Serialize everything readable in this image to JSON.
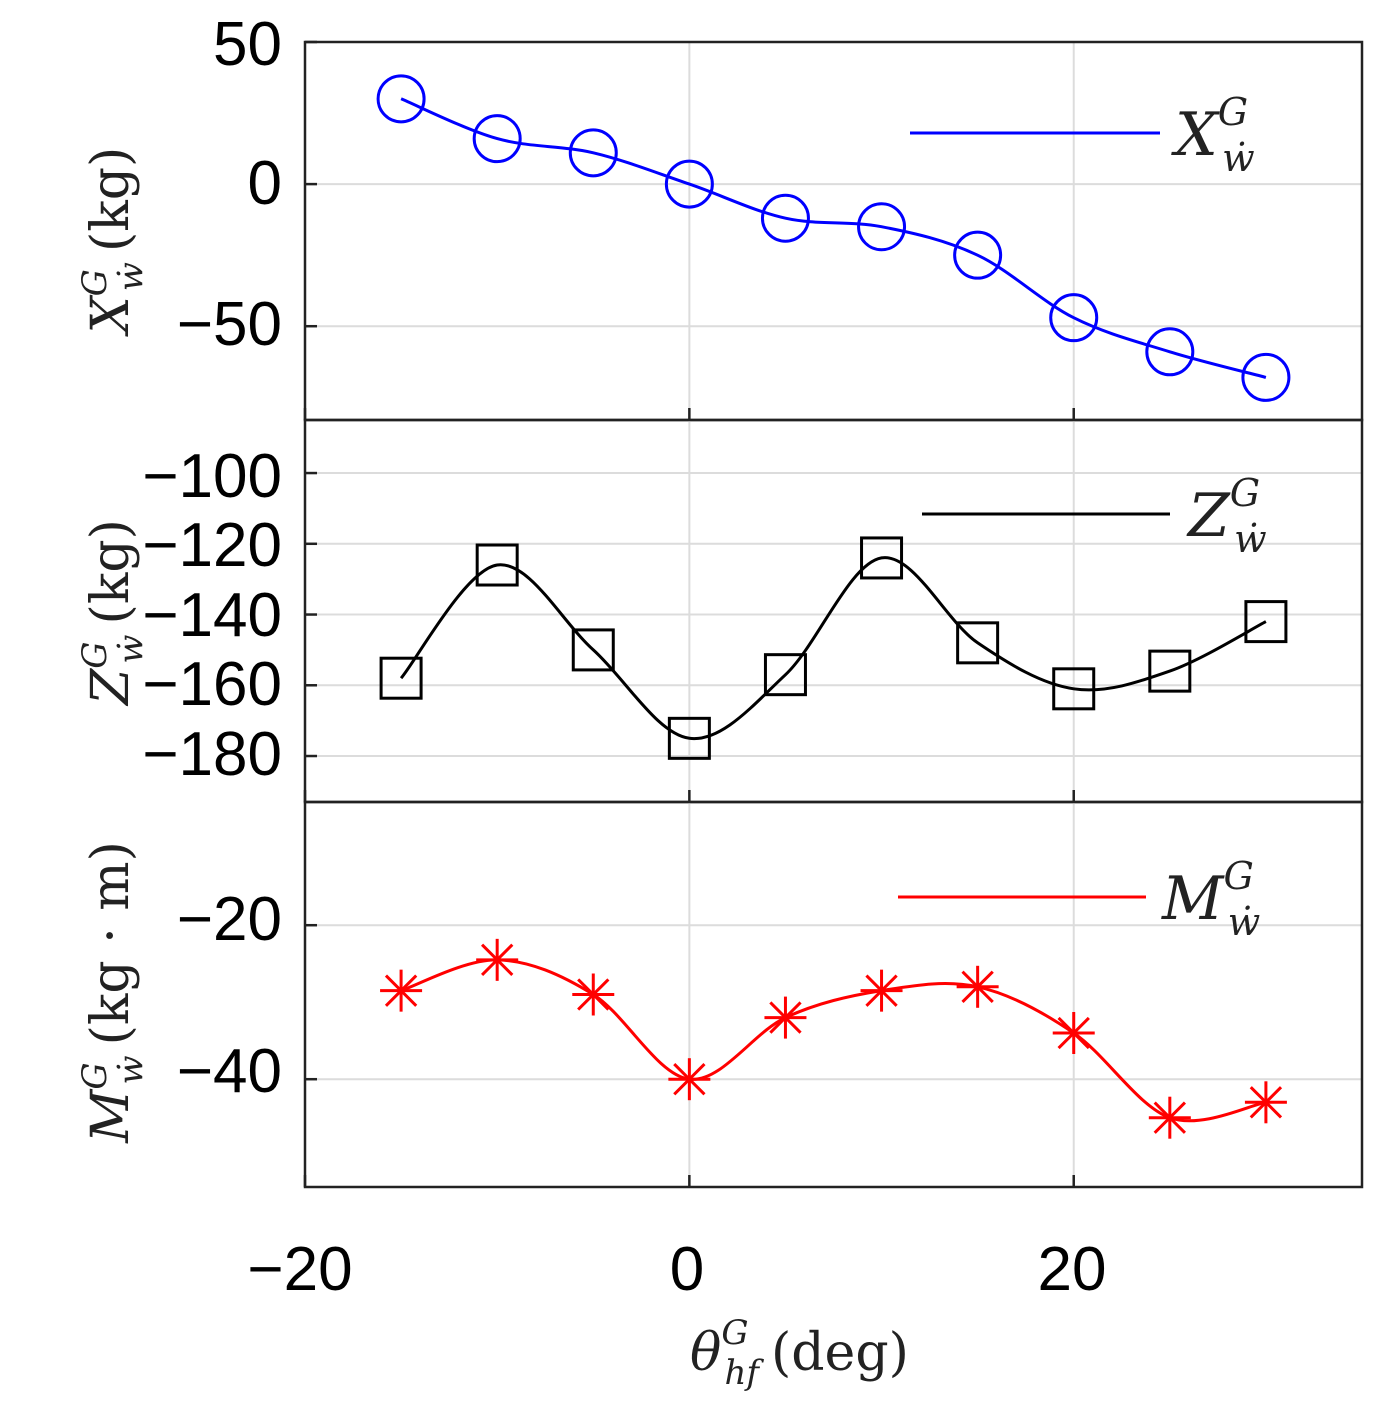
{
  "chart_data": [
    {
      "type": "line",
      "id": "xw",
      "color": "#0000ff",
      "marker": "circle",
      "x": [
        -15,
        -10,
        -5,
        0,
        5,
        10,
        15,
        20,
        25,
        30
      ],
      "values": [
        30,
        16,
        11,
        0,
        -12,
        -15,
        -25,
        -47,
        -59,
        -68
      ],
      "ylim": [
        -83,
        50
      ],
      "yticks": [
        50,
        0,
        -50
      ],
      "ytick_labels": [
        "50",
        "0",
        "−50"
      ],
      "ylabel": {
        "main": "X",
        "sup": "G",
        "sub": "ẇ",
        "unit": "(kg)"
      },
      "legend": {
        "main": "X",
        "sup": "G",
        "sub": "ẇ",
        "position": "top-right"
      }
    },
    {
      "type": "line",
      "id": "zw",
      "color": "#000000",
      "marker": "square",
      "x": [
        -15,
        -10,
        -5,
        0,
        5,
        10,
        15,
        20,
        25,
        30
      ],
      "values": [
        -158,
        -126,
        -150,
        -175,
        -157,
        -124,
        -148,
        -161,
        -156,
        -142
      ],
      "ylim": [
        -193,
        -85
      ],
      "yticks": [
        -100,
        -120,
        -140,
        -160,
        -180
      ],
      "ytick_labels": [
        "−100",
        "−120",
        "−140",
        "−160",
        "−180"
      ],
      "ylabel": {
        "main": "Z",
        "sup": "G",
        "sub": "ẇ",
        "unit": "(kg)"
      },
      "legend": {
        "main": "Z",
        "sup": "G",
        "sub": "ẇ",
        "position": "top-right"
      }
    },
    {
      "type": "line",
      "id": "mw",
      "color": "#ff0000",
      "marker": "asterisk",
      "x": [
        -15,
        -10,
        -5,
        0,
        5,
        10,
        15,
        20,
        25,
        30
      ],
      "values": [
        -28.5,
        -24.5,
        -29,
        -40,
        -32,
        -28.5,
        -28,
        -34,
        -45,
        -43
      ],
      "ylim": [
        -54,
        -4
      ],
      "yticks": [
        -20,
        -40
      ],
      "ytick_labels": [
        "−20",
        "−40"
      ],
      "ylabel": {
        "main": "M",
        "sup": "G",
        "sub": "ẇ",
        "unit": "(kg · m)"
      },
      "legend": {
        "main": "M",
        "sup": "G",
        "sub": "ẇ",
        "position": "top-right"
      }
    }
  ],
  "x_axis": {
    "xlim": [
      -20,
      35
    ],
    "xticks": [
      -20,
      0,
      20
    ],
    "xtick_labels": [
      "−20",
      "0",
      "20"
    ],
    "xlabel": {
      "main": "θ",
      "sup": "G",
      "sub": "hf",
      "unit": "(deg)"
    }
  }
}
